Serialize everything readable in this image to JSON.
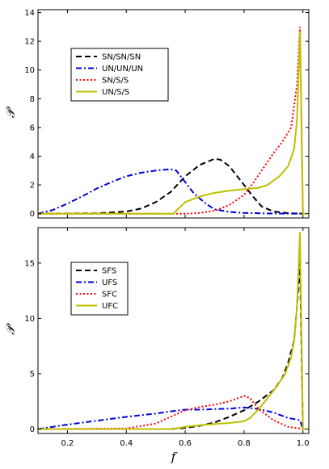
{
  "chart_data": [
    {
      "type": "line",
      "ylabel": "𝒫",
      "xlabel": "",
      "xlim": [
        0.1,
        1.02
      ],
      "ylim": [
        -0.3,
        14.2
      ],
      "yticks": [
        0,
        2,
        4,
        6,
        8,
        10,
        12,
        14
      ],
      "xticks": [
        0.2,
        0.4,
        0.6,
        0.8,
        1.0
      ],
      "xtick_labels_visible": false,
      "legend_placement": "upper-left",
      "grid": false,
      "series": [
        {
          "name": "SN/SN/SN",
          "color": "#000000",
          "style": "dashed",
          "x": [
            0.1,
            0.3,
            0.4,
            0.45,
            0.5,
            0.55,
            0.6,
            0.65,
            0.7,
            0.72,
            0.75,
            0.8,
            0.83,
            0.86,
            0.9,
            0.95,
            1.0
          ],
          "y": [
            0,
            0.02,
            0.15,
            0.35,
            0.8,
            1.5,
            2.6,
            3.4,
            3.82,
            3.75,
            3.3,
            2.0,
            1.2,
            0.5,
            0.15,
            0.03,
            0
          ]
        },
        {
          "name": "UN/UN/UN",
          "color": "#0000dd",
          "style": "dashdot",
          "x": [
            0.1,
            0.15,
            0.2,
            0.25,
            0.3,
            0.35,
            0.4,
            0.45,
            0.5,
            0.55,
            0.57,
            0.6,
            0.63,
            0.67,
            0.7,
            0.75,
            0.8,
            0.9,
            1.0
          ],
          "y": [
            0,
            0.25,
            0.7,
            1.2,
            1.75,
            2.2,
            2.6,
            2.85,
            3.0,
            3.1,
            3.0,
            2.2,
            1.4,
            0.7,
            0.3,
            0.12,
            0.05,
            0.01,
            0
          ]
        },
        {
          "name": "SN/S/S",
          "color": "#ff0000",
          "style": "dotted",
          "x": [
            0.1,
            0.6,
            0.65,
            0.7,
            0.75,
            0.8,
            0.83,
            0.86,
            0.9,
            0.93,
            0.96,
            0.98,
            0.99,
            1.0,
            1.01
          ],
          "y": [
            0,
            0,
            0.05,
            0.2,
            0.6,
            1.3,
            2.1,
            3.0,
            4.2,
            5.0,
            6.0,
            9.0,
            13.0,
            0,
            0
          ]
        },
        {
          "name": "UN/S/S",
          "color": "#bfbf00",
          "style": "solid",
          "x": [
            0.1,
            0.56,
            0.6,
            0.65,
            0.7,
            0.75,
            0.8,
            0.85,
            0.88,
            0.92,
            0.95,
            0.97,
            0.98,
            0.99,
            1.0,
            1.01
          ],
          "y": [
            0,
            0,
            0.8,
            1.2,
            1.45,
            1.6,
            1.7,
            1.8,
            2.0,
            2.6,
            3.3,
            4.5,
            6.5,
            12.7,
            0,
            0
          ]
        }
      ]
    },
    {
      "type": "line",
      "ylabel": "𝒫",
      "xlabel": "f",
      "xlim": [
        0.1,
        1.02
      ],
      "ylim": [
        -0.4,
        18.2
      ],
      "yticks": [
        0,
        5,
        10,
        15
      ],
      "xticks": [
        0.2,
        0.4,
        0.6,
        0.8,
        1.0
      ],
      "xtick_labels": [
        "0.2",
        "0.4",
        "0.6",
        "0.8",
        "1.0"
      ],
      "legend_placement": "upper-left",
      "grid": false,
      "series": [
        {
          "name": "SFS",
          "color": "#000000",
          "style": "dashed",
          "x": [
            0.1,
            0.55,
            0.6,
            0.65,
            0.7,
            0.75,
            0.8,
            0.85,
            0.9,
            0.93,
            0.95,
            0.97,
            0.98,
            0.99,
            1.0,
            1.01
          ],
          "y": [
            0,
            0,
            0.1,
            0.3,
            0.6,
            1.1,
            1.7,
            2.5,
            3.5,
            4.6,
            6.0,
            8.0,
            11.0,
            15.0,
            0,
            0
          ]
        },
        {
          "name": "UFS",
          "color": "#0000dd",
          "style": "dashdot",
          "x": [
            0.1,
            0.2,
            0.3,
            0.4,
            0.5,
            0.55,
            0.6,
            0.65,
            0.7,
            0.75,
            0.8,
            0.85,
            0.9,
            0.95,
            0.99,
            1.0,
            1.01
          ],
          "y": [
            0,
            0.4,
            0.75,
            1.1,
            1.4,
            1.6,
            1.75,
            1.75,
            1.8,
            1.85,
            1.95,
            1.8,
            1.5,
            1.0,
            0.8,
            0,
            0
          ]
        },
        {
          "name": "SFC",
          "color": "#ff0000",
          "style": "dotted",
          "x": [
            0.1,
            0.4,
            0.5,
            0.55,
            0.6,
            0.65,
            0.7,
            0.75,
            0.8,
            0.82,
            0.85,
            0.9,
            0.95,
            0.99,
            1.0,
            1.01
          ],
          "y": [
            0,
            0.05,
            0.5,
            1.1,
            1.7,
            2.0,
            2.2,
            2.5,
            3.0,
            2.8,
            1.8,
            0.8,
            0.2,
            0.05,
            0,
            0
          ]
        },
        {
          "name": "UFC",
          "color": "#bfbf00",
          "style": "solid",
          "x": [
            0.1,
            0.56,
            0.6,
            0.65,
            0.7,
            0.75,
            0.8,
            0.82,
            0.85,
            0.88,
            0.91,
            0.94,
            0.96,
            0.97,
            0.98,
            0.99,
            1.0,
            1.01
          ],
          "y": [
            0,
            0,
            0.2,
            0.35,
            0.45,
            0.55,
            0.7,
            1.0,
            1.8,
            2.8,
            3.8,
            5.0,
            6.5,
            8.0,
            11.0,
            17.8,
            0,
            0
          ]
        }
      ]
    }
  ]
}
